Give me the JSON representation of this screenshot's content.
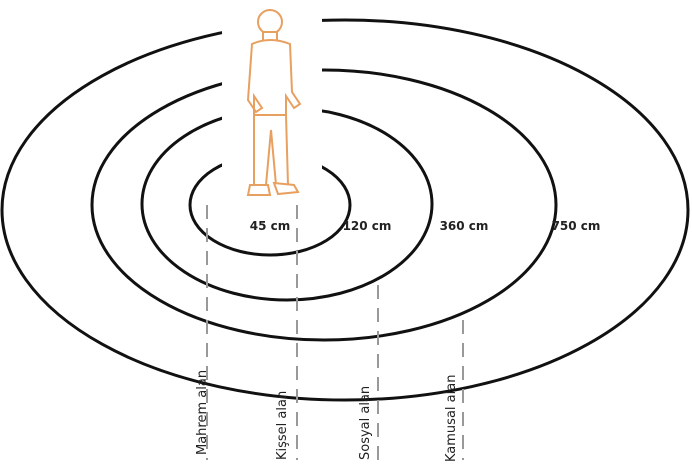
{
  "distances": [
    "45 cm",
    "120 cm",
    "360 cm",
    "750 cm"
  ],
  "zones": [
    "Mahrem alan",
    "Kişsel alan",
    "Sosyal alan",
    "Kamusal alan"
  ]
}
